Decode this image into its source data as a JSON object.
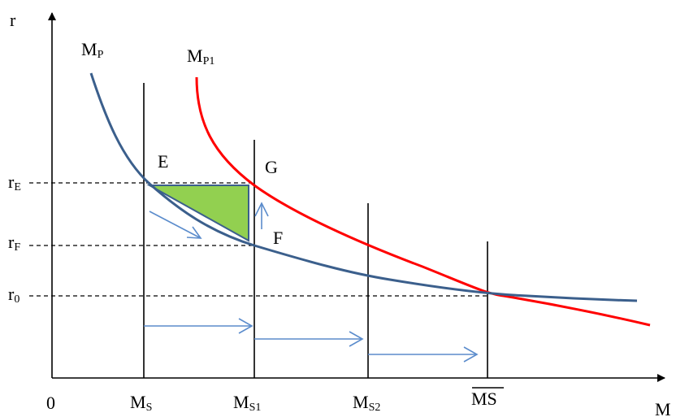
{
  "axes": {
    "y_label": "r",
    "x_label": "M",
    "origin_label": "0"
  },
  "y_ticks": [
    {
      "base": "r",
      "sub": "E"
    },
    {
      "base": "r",
      "sub": "F"
    },
    {
      "base": "r",
      "sub": "0"
    }
  ],
  "x_ticks": [
    {
      "base": "M",
      "sub": "S"
    },
    {
      "base": "M",
      "sub": "S1"
    },
    {
      "base": "M",
      "sub": "S2"
    },
    {
      "text": "MS",
      "overline": true
    }
  ],
  "curves": [
    {
      "base": "M",
      "sub": "P",
      "color": "#3b5f8c"
    },
    {
      "base": "M",
      "sub": "P1",
      "color": "#ff0000"
    }
  ],
  "points": {
    "E": "E",
    "G": "G",
    "F": "F"
  },
  "colors": {
    "axis": "#000000",
    "mp_curve": "#3b5f8c",
    "mp1_curve": "#ff0000",
    "arrow": "#5b8ccc",
    "triangle_fill": "#92d050",
    "triangle_stroke": "#3b5f8c"
  }
}
